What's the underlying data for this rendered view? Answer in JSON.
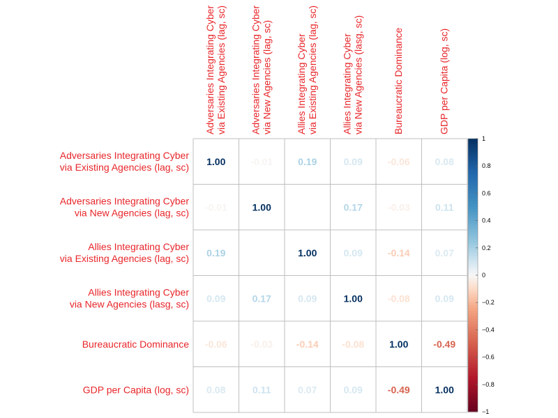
{
  "chart_data": {
    "type": "heatmap",
    "title": "",
    "variables": [
      {
        "line1": "Adversaries Integrating Cyber",
        "line2": "via Existing Agencies (lag, sc)"
      },
      {
        "line1": "Adversaries Integrating Cyber",
        "line2": "via New Agencies (lag, sc)"
      },
      {
        "line1": "Allies Integrating Cyber",
        "line2": "via Existing Agencies (lag, sc)"
      },
      {
        "line1": "Allies Integrating Cyber",
        "line2": "via New Agencies (lasg, sc)"
      },
      {
        "line1": "Bureaucratic Dominance",
        "line2": ""
      },
      {
        "line1": "GDP per Capita (log, sc)",
        "line2": ""
      }
    ],
    "matrix": [
      [
        1.0,
        -0.01,
        0.19,
        0.09,
        -0.06,
        0.08
      ],
      [
        -0.01,
        1.0,
        0.0,
        0.17,
        -0.03,
        0.11
      ],
      [
        0.19,
        0.0,
        1.0,
        0.09,
        -0.14,
        0.07
      ],
      [
        0.09,
        0.17,
        0.09,
        1.0,
        -0.08,
        0.09
      ],
      [
        -0.06,
        -0.03,
        -0.14,
        -0.08,
        1.0,
        -0.49
      ],
      [
        0.08,
        0.11,
        0.07,
        0.09,
        -0.49,
        1.0
      ]
    ],
    "value_labels": [
      [
        "1.00",
        "-0.01",
        "0.19",
        "0.09",
        "-0.06",
        "0.08"
      ],
      [
        "-0.01",
        "1.00",
        "",
        "0.17",
        "-0.03",
        "0.11"
      ],
      [
        "0.19",
        "",
        "1.00",
        "0.09",
        "-0.14",
        "0.07"
      ],
      [
        "0.09",
        "0.17",
        "0.09",
        "1.00",
        "-0.08",
        "0.09"
      ],
      [
        "-0.06",
        "-0.03",
        "-0.14",
        "-0.08",
        "1.00",
        "-0.49"
      ],
      [
        "0.08",
        "0.11",
        "0.07",
        "0.09",
        "-0.49",
        "1.00"
      ]
    ],
    "colorbar": {
      "range": [
        -1,
        1
      ],
      "ticks": [
        1,
        0.8,
        0.6,
        0.4,
        0.2,
        0,
        -0.2,
        -0.4,
        -0.6,
        -0.8,
        -1
      ],
      "tick_labels": [
        "1",
        "0.8",
        "0.6",
        "0.4",
        "0.2",
        "0",
        "−0.2",
        "−0.4",
        "−0.6",
        "−0.8",
        "−1"
      ],
      "colors": {
        "neg": "#67001f",
        "mid": "#f7f7f7",
        "pos": "#053061"
      }
    },
    "label_color": "#e8262a",
    "grid_color": "#bfbfbf"
  }
}
